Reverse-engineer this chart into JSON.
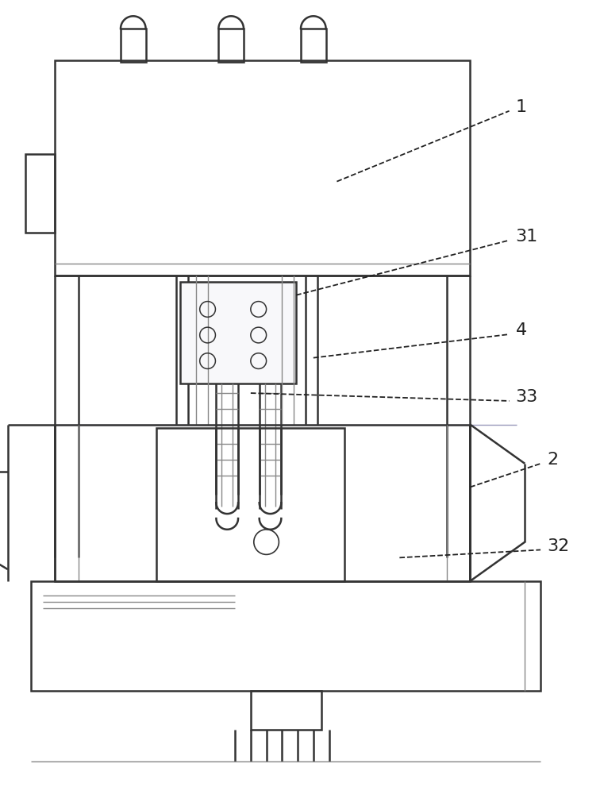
{
  "bg_color": "#ffffff",
  "line_color": "#333333",
  "gray_color": "#888888",
  "label_color": "#222222",
  "figsize": [
    7.61,
    10.0
  ],
  "dpi": 100
}
